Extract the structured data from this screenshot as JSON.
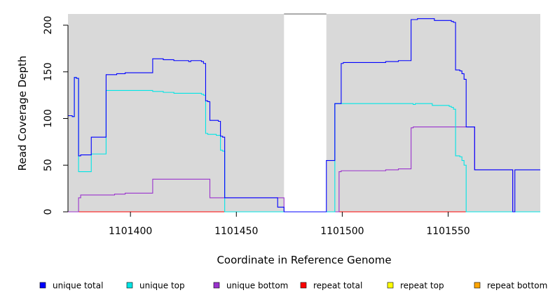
{
  "chart_data": {
    "type": "line",
    "title": "",
    "xlabel": "Coordinate in Reference Genome",
    "ylabel": "Read Coverage Depth",
    "xlim": [
      1101370.5,
      1101593.5
    ],
    "ylim": [
      0,
      212
    ],
    "x_ticks": [
      {
        "value": 1101400,
        "label": "1101400"
      },
      {
        "value": 1101450,
        "label": "1101450"
      },
      {
        "value": 1101500,
        "label": "1101500"
      },
      {
        "value": 1101550,
        "label": "1101550"
      }
    ],
    "y_ticks": [
      {
        "value": 0,
        "label": "0"
      },
      {
        "value": 50,
        "label": "50"
      },
      {
        "value": 100,
        "label": "100"
      },
      {
        "value": 150,
        "label": "150"
      },
      {
        "value": 200,
        "label": "200"
      }
    ],
    "shaded_regions": [
      [
        1101370.5,
        1101472.5
      ],
      [
        1101492.5,
        1101593.5
      ]
    ],
    "background_color": "#d9d9d9",
    "legend_position": "bottom",
    "series": [
      {
        "name": "unique total",
        "color": "#0000ff",
        "points": [
          [
            1101370.5,
            103
          ],
          [
            1101372.5,
            102
          ],
          [
            1101373.5,
            144
          ],
          [
            1101374.5,
            143
          ],
          [
            1101375.5,
            60
          ],
          [
            1101376.5,
            61
          ],
          [
            1101381.5,
            80
          ],
          [
            1101388.5,
            147
          ],
          [
            1101393.5,
            148
          ],
          [
            1101397.5,
            149
          ],
          [
            1101410.5,
            164
          ],
          [
            1101415.5,
            163
          ],
          [
            1101420.5,
            162
          ],
          [
            1101427.5,
            161
          ],
          [
            1101428.5,
            162
          ],
          [
            1101433.5,
            161
          ],
          [
            1101434.5,
            159
          ],
          [
            1101435.5,
            119
          ],
          [
            1101436.5,
            118
          ],
          [
            1101437.5,
            98
          ],
          [
            1101441.5,
            97
          ],
          [
            1101442.5,
            81
          ],
          [
            1101443.5,
            80
          ],
          [
            1101444.5,
            15
          ],
          [
            1101469.5,
            5
          ],
          [
            1101472.5,
            0
          ],
          [
            1101491.5,
            0
          ],
          [
            1101492.5,
            55
          ],
          [
            1101496.5,
            116
          ],
          [
            1101499.5,
            159
          ],
          [
            1101500.5,
            160
          ],
          [
            1101520.5,
            161
          ],
          [
            1101526.5,
            162
          ],
          [
            1101532.5,
            206
          ],
          [
            1101535.5,
            207
          ],
          [
            1101543.5,
            205
          ],
          [
            1101551.5,
            204
          ],
          [
            1101552.5,
            203
          ],
          [
            1101553.5,
            152
          ],
          [
            1101555.5,
            151
          ],
          [
            1101556.5,
            148
          ],
          [
            1101557.5,
            142
          ],
          [
            1101558.5,
            91
          ],
          [
            1101562.5,
            45
          ],
          [
            1101580.5,
            0
          ],
          [
            1101581.5,
            45
          ],
          [
            1101593.5,
            45
          ]
        ]
      },
      {
        "name": "unique top",
        "color": "#00e5e5",
        "points": [
          [
            1101370.5,
            103
          ],
          [
            1101372.5,
            102
          ],
          [
            1101373.5,
            144
          ],
          [
            1101374.5,
            143
          ],
          [
            1101375.5,
            43
          ],
          [
            1101381.5,
            62
          ],
          [
            1101388.5,
            130
          ],
          [
            1101410.5,
            129
          ],
          [
            1101415.5,
            128
          ],
          [
            1101420.5,
            127
          ],
          [
            1101428.5,
            127
          ],
          [
            1101433.5,
            126
          ],
          [
            1101434.5,
            125
          ],
          [
            1101435.5,
            84
          ],
          [
            1101436.5,
            83
          ],
          [
            1101440.5,
            82
          ],
          [
            1101442.5,
            66
          ],
          [
            1101443.5,
            65
          ],
          [
            1101444.5,
            0
          ],
          [
            1101496.5,
            116
          ],
          [
            1101533.5,
            115
          ],
          [
            1101534.5,
            116
          ],
          [
            1101542.5,
            114
          ],
          [
            1101550.5,
            113
          ],
          [
            1101551.5,
            112
          ],
          [
            1101552.5,
            110
          ],
          [
            1101553.5,
            60
          ],
          [
            1101555.5,
            59
          ],
          [
            1101556.5,
            55
          ],
          [
            1101557.5,
            50
          ],
          [
            1101558.5,
            0
          ],
          [
            1101593.5,
            0
          ]
        ]
      },
      {
        "name": "unique bottom",
        "color": "#9a32cd",
        "points": [
          [
            1101370.5,
            0
          ],
          [
            1101375.5,
            15
          ],
          [
            1101376.5,
            18
          ],
          [
            1101392.5,
            19
          ],
          [
            1101397.5,
            20
          ],
          [
            1101410.5,
            35
          ],
          [
            1101437.5,
            15
          ],
          [
            1101472.5,
            0
          ],
          [
            1101498.5,
            43
          ],
          [
            1101499.5,
            44
          ],
          [
            1101520.5,
            45
          ],
          [
            1101526.5,
            46
          ],
          [
            1101532.5,
            90
          ],
          [
            1101533.5,
            91
          ],
          [
            1101562.5,
            45
          ],
          [
            1101580.5,
            0
          ],
          [
            1101593.5,
            0
          ]
        ]
      },
      {
        "name": "repeat total",
        "color": "#ff0000",
        "points": [
          [
            1101370.5,
            0
          ],
          [
            1101593.5,
            0
          ]
        ]
      },
      {
        "name": "repeat top",
        "color": "#ffff00",
        "points": [
          [
            1101370.5,
            0
          ],
          [
            1101593.5,
            0
          ]
        ]
      },
      {
        "name": "repeat bottom",
        "color": "#ffa500",
        "points": [
          [
            1101370.5,
            0
          ],
          [
            1101593.5,
            0
          ]
        ]
      }
    ]
  }
}
